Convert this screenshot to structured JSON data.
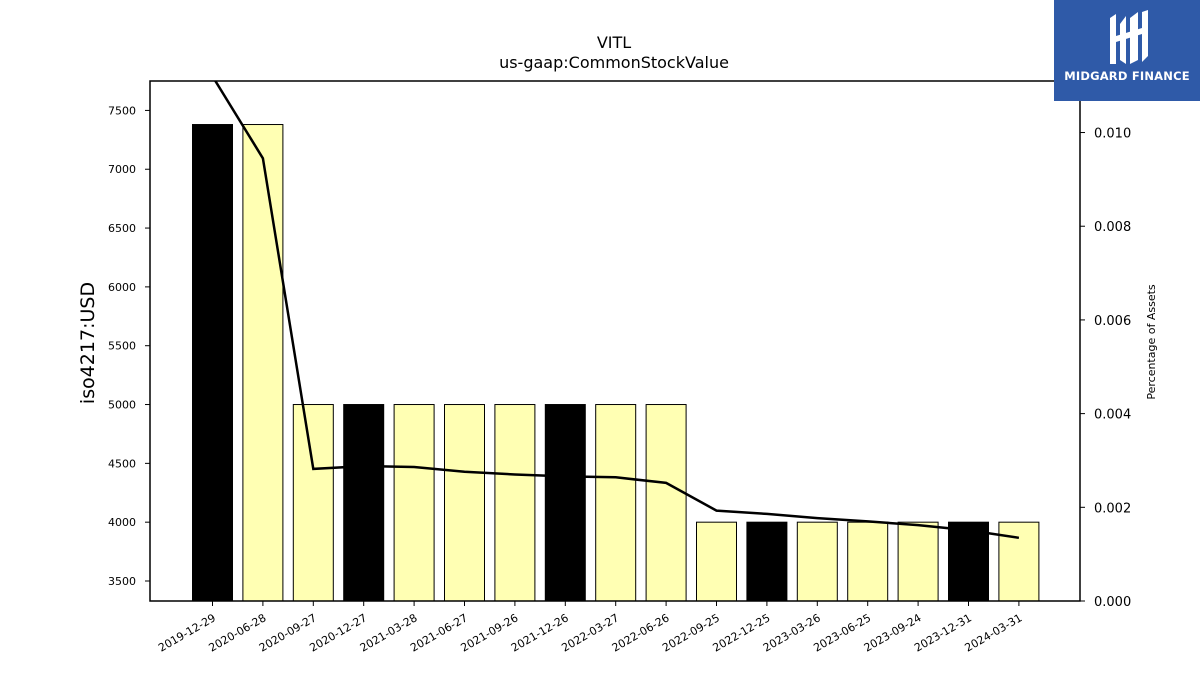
{
  "chart_data": {
    "type": "bar",
    "title": "VITL",
    "subtitle": "us-gaap:CommonStockValue",
    "ylabel": "iso4217:USD",
    "ylabel_right": "Percentage of Assets",
    "categories": [
      "2019-12-29",
      "2020-06-28",
      "2020-09-27",
      "2020-12-27",
      "2021-03-28",
      "2021-06-27",
      "2021-09-26",
      "2021-12-26",
      "2022-03-27",
      "2022-06-26",
      "2022-09-25",
      "2022-12-25",
      "2023-03-26",
      "2023-06-25",
      "2023-09-24",
      "2023-12-31",
      "2024-03-31"
    ],
    "values": [
      7380,
      7380,
      5000,
      5000,
      5000,
      5000,
      5000,
      5000,
      5000,
      5000,
      4000,
      4000,
      4000,
      4000,
      4000,
      4000,
      4000
    ],
    "bar_colors": [
      "#000000",
      "#ffffb3",
      "#ffffb3",
      "#000000",
      "#ffffb3",
      "#ffffb3",
      "#ffffb3",
      "#000000",
      "#ffffb3",
      "#ffffb3",
      "#ffffb3",
      "#000000",
      "#ffffb3",
      "#ffffb3",
      "#ffffb3",
      "#000000",
      "#ffffb3"
    ],
    "line_series": {
      "axis": "right",
      "values": [
        0.0112,
        0.00945,
        0.00282,
        0.00288,
        0.00286,
        0.00276,
        0.0027,
        0.00266,
        0.00264,
        0.00252,
        0.00193,
        0.00186,
        0.00177,
        0.0017,
        0.00162,
        0.00151,
        0.00135
      ]
    },
    "ylim": [
      3330,
      7750
    ],
    "ylim_right": [
      0,
      0.0111
    ],
    "yticks": [
      3500,
      4000,
      4500,
      5000,
      5500,
      6000,
      6500,
      7000,
      7500
    ],
    "yticks_right": [
      "0.000",
      "0.002",
      "0.004",
      "0.006",
      "0.008",
      "0.010"
    ],
    "grid": false
  },
  "logo": {
    "name": "MIDGARD FINANCE",
    "background": "#2f5aa8"
  }
}
